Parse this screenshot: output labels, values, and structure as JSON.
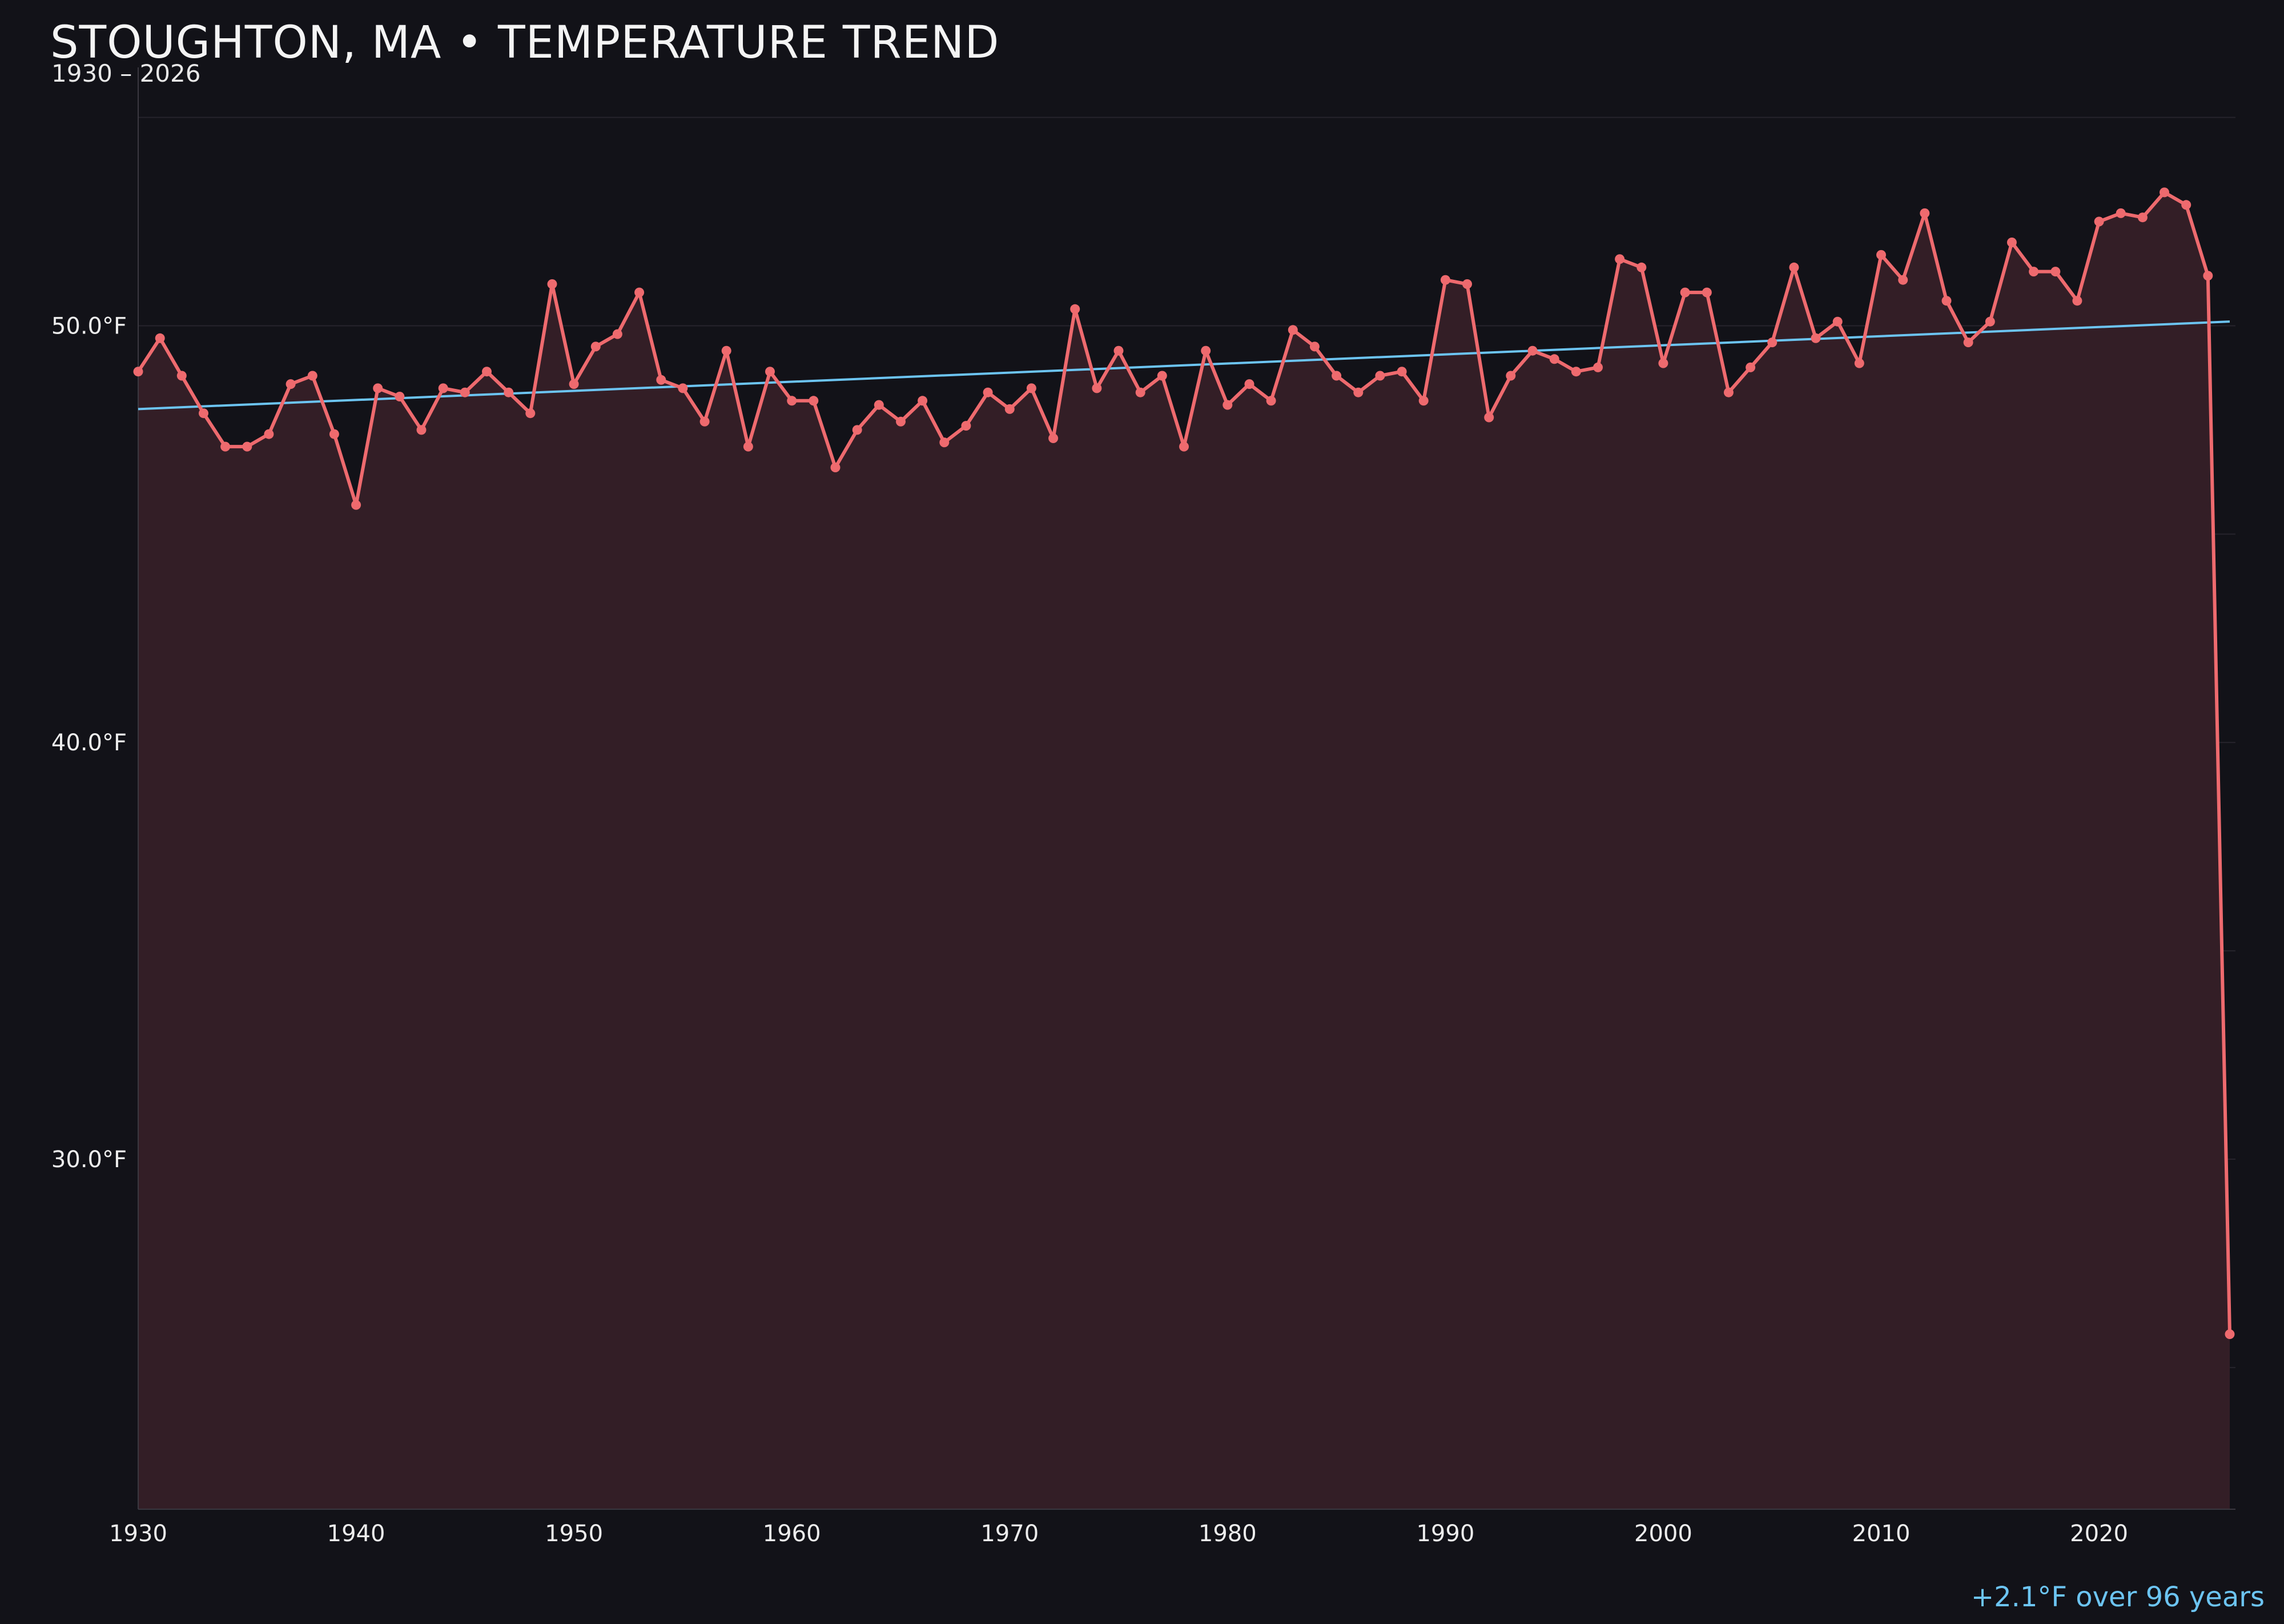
{
  "title": "STOUGHTON, MA • TEMPERATURE TREND",
  "subtitle": "1930 – 2026",
  "trend_note": "+2.1°F over 96 years",
  "colors": {
    "background": "#121218",
    "series_line": "#ee6a6e",
    "area_fill": "#331e26",
    "trend_line": "#6cc4f2",
    "grid": "#26242c",
    "axis": "#3a3840",
    "tick_text": "#ededed"
  },
  "chart_data": {
    "type": "line",
    "title": "STOUGHTON, MA • TEMPERATURE TREND",
    "subtitle": "1930 – 2026",
    "xlabel": "",
    "ylabel": "",
    "xlim": [
      1930,
      2026
    ],
    "ylim": [
      21.6,
      56.2
    ],
    "x_ticks": [
      1930,
      1940,
      1950,
      1960,
      1970,
      1980,
      1990,
      2000,
      2010,
      2020
    ],
    "y_ticks": [
      30.0,
      40.0,
      50.0
    ],
    "y_tick_labels": [
      "30.0°F",
      "40.0°F",
      "50.0°F"
    ],
    "grid": true,
    "area_fill_below_line": true,
    "series": [
      {
        "name": "",
        "marker": "dot",
        "x": [
          1930,
          1931,
          1932,
          1933,
          1934,
          1935,
          1936,
          1937,
          1938,
          1939,
          1940,
          1941,
          1942,
          1943,
          1944,
          1945,
          1946,
          1947,
          1948,
          1949,
          1950,
          1951,
          1952,
          1953,
          1954,
          1955,
          1956,
          1957,
          1958,
          1959,
          1960,
          1961,
          1962,
          1963,
          1964,
          1965,
          1966,
          1967,
          1968,
          1969,
          1970,
          1971,
          1972,
          1973,
          1974,
          1975,
          1976,
          1977,
          1978,
          1979,
          1980,
          1981,
          1982,
          1983,
          1984,
          1985,
          1986,
          1987,
          1988,
          1989,
          1990,
          1991,
          1992,
          1993,
          1994,
          1995,
          1996,
          1997,
          1998,
          1999,
          2000,
          2001,
          2002,
          2003,
          2004,
          2005,
          2006,
          2007,
          2008,
          2009,
          2010,
          2011,
          2012,
          2013,
          2014,
          2015,
          2016,
          2017,
          2018,
          2019,
          2020,
          2021,
          2022,
          2023,
          2024,
          2025,
          2026
        ],
        "values": [
          48.9,
          49.7,
          48.8,
          47.9,
          47.1,
          47.1,
          47.4,
          48.6,
          48.8,
          47.4,
          45.7,
          48.5,
          48.3,
          47.5,
          48.5,
          48.4,
          48.9,
          48.4,
          47.9,
          51.0,
          48.6,
          49.5,
          49.8,
          50.8,
          48.7,
          48.5,
          47.7,
          49.4,
          47.1,
          48.9,
          48.2,
          48.2,
          46.6,
          47.5,
          48.1,
          47.7,
          48.2,
          47.2,
          47.6,
          48.4,
          48.0,
          48.5,
          47.3,
          50.4,
          48.5,
          49.4,
          48.4,
          48.8,
          47.1,
          49.4,
          48.1,
          48.6,
          48.2,
          49.9,
          49.5,
          48.8,
          48.4,
          48.8,
          48.9,
          48.2,
          51.1,
          51.0,
          47.8,
          48.8,
          49.4,
          49.2,
          48.9,
          49.0,
          51.6,
          51.4,
          49.1,
          50.8,
          50.8,
          48.4,
          49.0,
          49.6,
          51.4,
          49.7,
          50.1,
          49.1,
          51.7,
          51.1,
          52.7,
          50.6,
          49.6,
          50.1,
          52.0,
          51.3,
          51.3,
          50.6,
          52.5,
          52.7,
          52.6,
          53.2,
          52.9,
          51.2,
          25.8
        ]
      },
      {
        "name": "",
        "style": "trend",
        "x": [
          1930,
          2026
        ],
        "values": [
          48.0,
          50.1
        ]
      }
    ]
  }
}
